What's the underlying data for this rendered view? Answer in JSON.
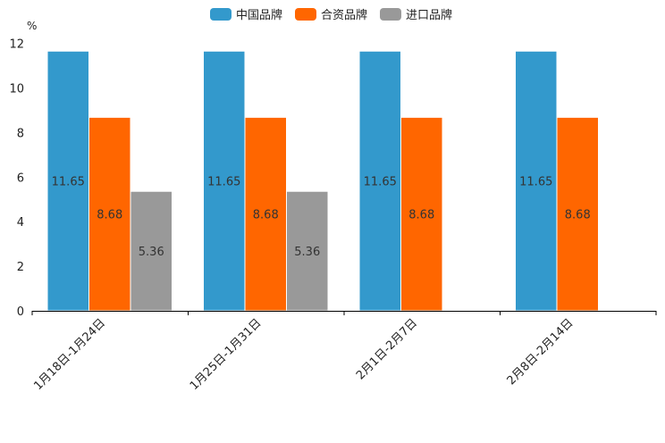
{
  "chart_data": {
    "type": "bar",
    "title": "",
    "unit": "%",
    "categories": [
      "1月18日-1月24日",
      "1月25日-1月31日",
      "2月1日-2月7日",
      "2月8日-2月14日"
    ],
    "series": [
      {
        "name": "中国品牌",
        "color": "#3399cc",
        "values": [
          11.65,
          11.65,
          11.65,
          11.65
        ]
      },
      {
        "name": "合资品牌",
        "color": "#ff6600",
        "values": [
          8.68,
          8.68,
          8.68,
          8.68
        ]
      },
      {
        "name": "进口品牌",
        "color": "#999999",
        "values": [
          5.36,
          5.36,
          null,
          null
        ]
      }
    ],
    "yticks": [
      0,
      2,
      4,
      6,
      8,
      10,
      12
    ],
    "ylim": [
      0,
      12
    ],
    "legend_position": "top-center",
    "grid": false
  }
}
